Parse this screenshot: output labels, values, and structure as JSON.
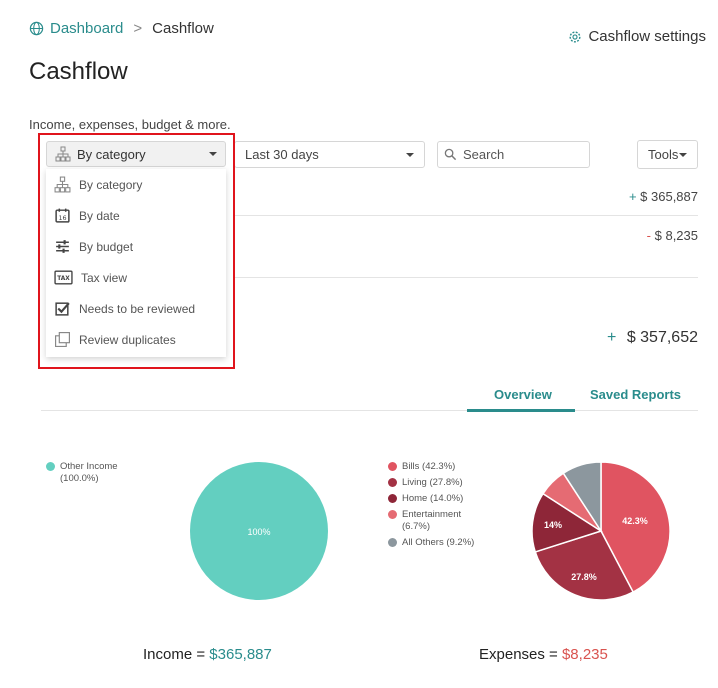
{
  "breadcrumb": {
    "parent": "Dashboard",
    "separator": ">",
    "current": "Cashflow"
  },
  "settings_label": "Cashflow settings",
  "page_title": "Cashflow",
  "subtitle": "Income, expenses, budget & more.",
  "toolbar": {
    "group_by_value": "By category",
    "date_range_value": "Last 30 days",
    "search_placeholder": "Search",
    "tools_label": "Tools"
  },
  "group_menu": {
    "items": [
      {
        "label": "By category",
        "icon": "hierarchy-icon"
      },
      {
        "label": "By date",
        "icon": "calendar-icon"
      },
      {
        "label": "By budget",
        "icon": "sliders-icon"
      },
      {
        "label": "Tax view",
        "icon": "tax-icon"
      },
      {
        "label": "Needs to be reviewed",
        "icon": "checkbox-icon"
      },
      {
        "label": "Review duplicates",
        "icon": "duplicate-icon"
      }
    ]
  },
  "summary": {
    "income_sign": "+",
    "income": "$ 365,887",
    "expense_sign": "-",
    "expense": "$ 8,235",
    "net_sign": "+",
    "net": "$ 357,652"
  },
  "tabs": [
    {
      "label": "Overview"
    },
    {
      "label": "Saved Reports"
    }
  ],
  "colors": {
    "teal": "#2a8c8c",
    "income_pie": "#63cfc0",
    "bills": "#e05461",
    "living": "#a33244",
    "home": "#8e2638",
    "entertainment": "#e56b73",
    "others": "#8c979e"
  },
  "income_chart": {
    "legend": [
      {
        "label": "Other Income",
        "pct": "(100.0%)"
      }
    ],
    "slice_label": "100%",
    "total_label": "Income = ",
    "total_value": "$365,887"
  },
  "expense_chart": {
    "legend": [
      {
        "label": "Bills (42.3%)"
      },
      {
        "label": "Living (27.8%)"
      },
      {
        "label": "Home (14.0%)"
      },
      {
        "label": "Entertainment",
        "pct": "(6.7%)"
      },
      {
        "label": "All Others (9.2%)"
      }
    ],
    "slice_labels": {
      "bills": "42.3%",
      "living": "27.8%",
      "home": "14%"
    },
    "total_label": "Expenses = ",
    "total_value": "$8,235"
  },
  "chart_data": [
    {
      "type": "pie",
      "categories": [
        "Other Income"
      ],
      "values": [
        100.0
      ]
    },
    {
      "type": "pie",
      "categories": [
        "Bills",
        "Living",
        "Home",
        "Entertainment",
        "All Others"
      ],
      "values": [
        42.3,
        27.8,
        14.0,
        6.7,
        9.2
      ]
    }
  ]
}
